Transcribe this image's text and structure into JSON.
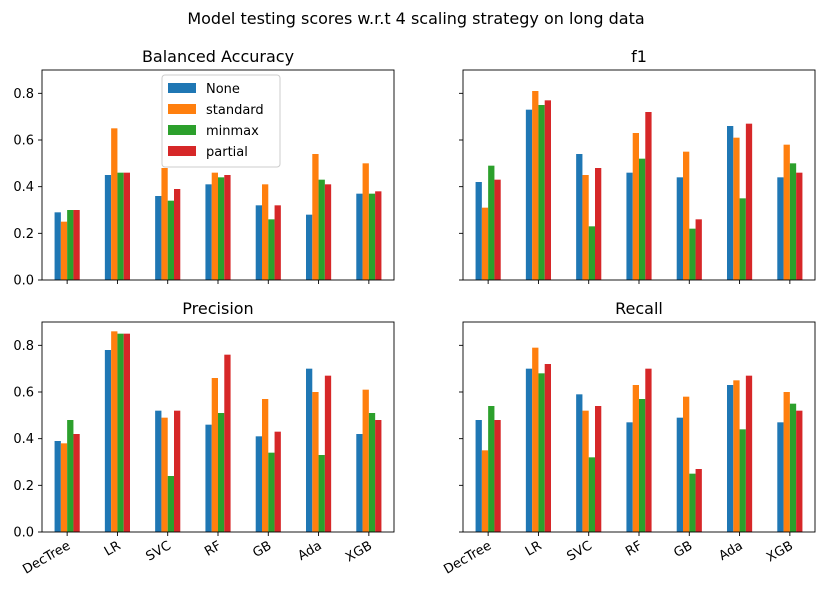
{
  "suptitle": "Model testing scores w.r.t 4 scaling strategy on long data",
  "colors": {
    "None": "#1f77b4",
    "standard": "#ff7f0e",
    "minmax": "#2ca02c",
    "partial": "#d62728"
  },
  "chart_data": [
    {
      "type": "bar",
      "title": "Balanced Accuracy",
      "categories": [
        "DecTree",
        "LR",
        "SVC",
        "RF",
        "GB",
        "Ada",
        "XGB"
      ],
      "ylim": [
        0,
        0.9
      ],
      "yticks": [
        "0.0",
        "0.2",
        "0.4",
        "0.6",
        "0.8"
      ],
      "legend": "upper-center",
      "series": [
        {
          "name": "None",
          "values": [
            0.29,
            0.45,
            0.36,
            0.41,
            0.32,
            0.28,
            0.37
          ]
        },
        {
          "name": "standard",
          "values": [
            0.25,
            0.65,
            0.48,
            0.46,
            0.41,
            0.54,
            0.5
          ]
        },
        {
          "name": "minmax",
          "values": [
            0.3,
            0.46,
            0.34,
            0.44,
            0.26,
            0.43,
            0.37
          ]
        },
        {
          "name": "partial",
          "values": [
            0.3,
            0.46,
            0.39,
            0.45,
            0.32,
            0.41,
            0.38
          ]
        }
      ]
    },
    {
      "type": "bar",
      "title": "f1",
      "categories": [
        "DecTree",
        "LR",
        "SVC",
        "RF",
        "GB",
        "Ada",
        "XGB"
      ],
      "ylim": [
        0,
        0.9
      ],
      "series": [
        {
          "name": "None",
          "values": [
            0.42,
            0.73,
            0.54,
            0.46,
            0.44,
            0.66,
            0.44
          ]
        },
        {
          "name": "standard",
          "values": [
            0.31,
            0.81,
            0.45,
            0.63,
            0.55,
            0.61,
            0.58
          ]
        },
        {
          "name": "minmax",
          "values": [
            0.49,
            0.75,
            0.23,
            0.52,
            0.22,
            0.35,
            0.5
          ]
        },
        {
          "name": "partial",
          "values": [
            0.43,
            0.77,
            0.48,
            0.72,
            0.26,
            0.67,
            0.46
          ]
        }
      ]
    },
    {
      "type": "bar",
      "title": "Precision",
      "categories": [
        "DecTree",
        "LR",
        "SVC",
        "RF",
        "GB",
        "Ada",
        "XGB"
      ],
      "ylim": [
        0,
        0.9
      ],
      "yticks": [
        "0.0",
        "0.2",
        "0.4",
        "0.6",
        "0.8"
      ],
      "series": [
        {
          "name": "None",
          "values": [
            0.39,
            0.78,
            0.52,
            0.46,
            0.41,
            0.7,
            0.42
          ]
        },
        {
          "name": "standard",
          "values": [
            0.38,
            0.86,
            0.49,
            0.66,
            0.57,
            0.6,
            0.61
          ]
        },
        {
          "name": "minmax",
          "values": [
            0.48,
            0.85,
            0.24,
            0.51,
            0.34,
            0.33,
            0.51
          ]
        },
        {
          "name": "partial",
          "values": [
            0.42,
            0.85,
            0.52,
            0.76,
            0.43,
            0.67,
            0.48
          ]
        }
      ]
    },
    {
      "type": "bar",
      "title": "Recall",
      "categories": [
        "DecTree",
        "LR",
        "SVC",
        "RF",
        "GB",
        "Ada",
        "XGB"
      ],
      "ylim": [
        0,
        0.9
      ],
      "series": [
        {
          "name": "None",
          "values": [
            0.48,
            0.7,
            0.59,
            0.47,
            0.49,
            0.63,
            0.47
          ]
        },
        {
          "name": "standard",
          "values": [
            0.35,
            0.79,
            0.52,
            0.63,
            0.58,
            0.65,
            0.6
          ]
        },
        {
          "name": "minmax",
          "values": [
            0.54,
            0.68,
            0.32,
            0.57,
            0.25,
            0.44,
            0.55
          ]
        },
        {
          "name": "partial",
          "values": [
            0.48,
            0.72,
            0.54,
            0.7,
            0.27,
            0.67,
            0.52
          ]
        }
      ]
    }
  ]
}
